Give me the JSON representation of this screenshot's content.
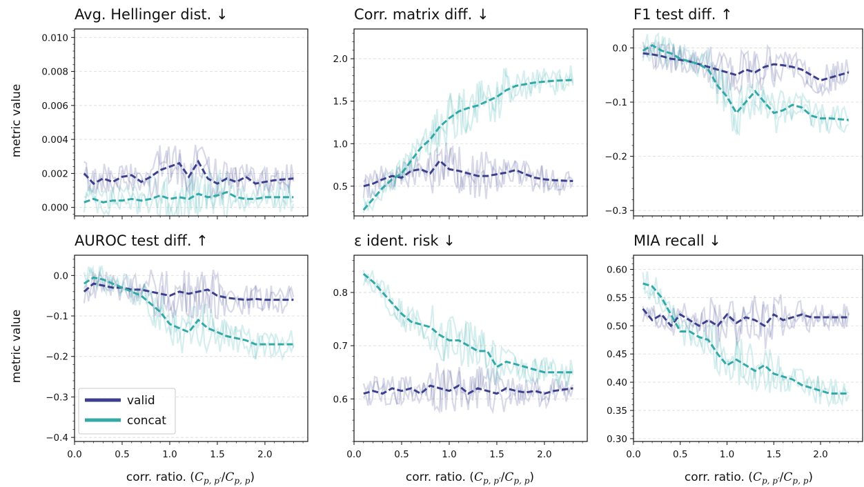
{
  "colors": {
    "valid": "#3b3f8c",
    "concat": "#33a8a8"
  },
  "legend": {
    "labels": [
      "valid",
      "concat"
    ],
    "placement": "lower-left"
  },
  "xlabel": {
    "prefix": "corr. ratio. (",
    "c1": "C",
    "sub1": "p, p′",
    "slash": "/",
    "c2": "C",
    "sub2": "p, p",
    "suffix": ")"
  },
  "ylabel": "metric value",
  "chart_data": [
    {
      "type": "line",
      "title": "Avg. Hellinger dist.  ↓",
      "xlim": [
        0,
        2.45
      ],
      "ylim": [
        -0.0005,
        0.0105
      ],
      "xticks": [
        0.0,
        0.5,
        1.0,
        1.5,
        2.0
      ],
      "xticklabels": [
        "0.0",
        "0.5",
        "1.0",
        "1.5",
        "2.0"
      ],
      "yticks": [
        0.0,
        0.002,
        0.004,
        0.006,
        0.008,
        0.01
      ],
      "yticklabels": [
        "0.000",
        "0.002",
        "0.004",
        "0.006",
        "0.008",
        "0.010"
      ],
      "series": [
        {
          "name": "valid",
          "x": [
            0.1,
            0.2,
            0.3,
            0.4,
            0.5,
            0.6,
            0.7,
            0.8,
            0.9,
            1.0,
            1.1,
            1.2,
            1.3,
            1.4,
            1.5,
            1.6,
            1.7,
            1.8,
            1.9,
            2.0,
            2.1,
            2.3
          ],
          "y": [
            0.002,
            0.0014,
            0.0017,
            0.0015,
            0.0018,
            0.0019,
            0.0015,
            0.0018,
            0.0022,
            0.0024,
            0.0026,
            0.0018,
            0.0027,
            0.0017,
            0.0014,
            0.0017,
            0.0015,
            0.0018,
            0.0014,
            0.0015,
            0.0016,
            0.0017
          ]
        },
        {
          "name": "concat",
          "x": [
            0.1,
            0.2,
            0.3,
            0.4,
            0.5,
            0.6,
            0.7,
            0.8,
            0.9,
            1.0,
            1.1,
            1.2,
            1.3,
            1.4,
            1.5,
            1.6,
            1.7,
            1.8,
            1.9,
            2.0,
            2.1,
            2.3
          ],
          "y": [
            0.0003,
            0.0005,
            0.0003,
            0.0004,
            0.0004,
            0.0005,
            0.0004,
            0.0005,
            0.0007,
            0.0005,
            0.0006,
            0.0005,
            0.0008,
            0.0006,
            0.0007,
            0.0009,
            0.0006,
            0.0005,
            0.0005,
            0.0006,
            0.0006,
            0.0006
          ]
        }
      ]
    },
    {
      "type": "line",
      "title": "Corr. matrix diff.  ↓",
      "xlim": [
        0,
        2.45
      ],
      "ylim": [
        0.15,
        2.35
      ],
      "xticks": [
        0.0,
        0.5,
        1.0,
        1.5,
        2.0
      ],
      "xticklabels": [
        "0.0",
        "0.5",
        "1.0",
        "1.5",
        "2.0"
      ],
      "yticks": [
        0.5,
        1.0,
        1.5,
        2.0
      ],
      "yticklabels": [
        "0.5",
        "1.0",
        "1.5",
        "2.0"
      ],
      "series": [
        {
          "name": "valid",
          "x": [
            0.1,
            0.2,
            0.3,
            0.4,
            0.5,
            0.6,
            0.7,
            0.8,
            0.9,
            1.0,
            1.1,
            1.2,
            1.3,
            1.4,
            1.5,
            1.6,
            1.7,
            1.8,
            1.9,
            2.0,
            2.1,
            2.3
          ],
          "y": [
            0.5,
            0.53,
            0.58,
            0.62,
            0.6,
            0.68,
            0.7,
            0.65,
            0.8,
            0.7,
            0.68,
            0.65,
            0.62,
            0.62,
            0.64,
            0.66,
            0.69,
            0.64,
            0.6,
            0.58,
            0.57,
            0.56
          ]
        },
        {
          "name": "concat",
          "x": [
            0.1,
            0.2,
            0.3,
            0.4,
            0.5,
            0.6,
            0.7,
            0.8,
            0.9,
            1.0,
            1.1,
            1.2,
            1.3,
            1.4,
            1.5,
            1.6,
            1.7,
            1.8,
            1.9,
            2.0,
            2.1,
            2.3
          ],
          "y": [
            0.22,
            0.35,
            0.48,
            0.58,
            0.65,
            0.8,
            0.95,
            1.05,
            1.2,
            1.3,
            1.38,
            1.42,
            1.45,
            1.5,
            1.55,
            1.63,
            1.68,
            1.7,
            1.72,
            1.73,
            1.74,
            1.75
          ]
        }
      ]
    },
    {
      "type": "line",
      "title": "F1 test diff.  ↑",
      "xlim": [
        0,
        2.45
      ],
      "ylim": [
        -0.31,
        0.035
      ],
      "xticks": [
        0.0,
        0.5,
        1.0,
        1.5,
        2.0
      ],
      "xticklabels": [
        "0.0",
        "0.5",
        "1.0",
        "1.5",
        "2.0"
      ],
      "yticks": [
        0.0,
        -0.1,
        -0.2,
        -0.3
      ],
      "yticklabels": [
        "0.0",
        "−0.1",
        "−0.2",
        "−0.3"
      ],
      "series": [
        {
          "name": "valid",
          "x": [
            0.1,
            0.2,
            0.3,
            0.4,
            0.5,
            0.6,
            0.7,
            0.8,
            0.9,
            1.0,
            1.1,
            1.2,
            1.3,
            1.4,
            1.5,
            1.6,
            1.7,
            1.8,
            1.9,
            2.0,
            2.1,
            2.3
          ],
          "y": [
            -0.01,
            -0.012,
            -0.015,
            -0.02,
            -0.022,
            -0.025,
            -0.03,
            -0.035,
            -0.04,
            -0.045,
            -0.05,
            -0.04,
            -0.045,
            -0.035,
            -0.03,
            -0.032,
            -0.035,
            -0.04,
            -0.05,
            -0.06,
            -0.055,
            -0.045
          ]
        },
        {
          "name": "concat",
          "x": [
            0.1,
            0.2,
            0.3,
            0.4,
            0.5,
            0.6,
            0.7,
            0.8,
            0.9,
            1.0,
            1.1,
            1.2,
            1.3,
            1.4,
            1.5,
            1.6,
            1.7,
            1.8,
            1.9,
            2.0,
            2.1,
            2.3
          ],
          "y": [
            -0.005,
            0.005,
            -0.005,
            -0.01,
            -0.02,
            -0.025,
            -0.03,
            -0.04,
            -0.07,
            -0.09,
            -0.12,
            -0.1,
            -0.08,
            -0.1,
            -0.12,
            -0.115,
            -0.105,
            -0.11,
            -0.125,
            -0.13,
            -0.13,
            -0.133
          ]
        }
      ]
    },
    {
      "type": "line",
      "title": "AUROC test diff.  ↑",
      "xlim": [
        0,
        2.45
      ],
      "ylim": [
        -0.41,
        0.05
      ],
      "xticks": [
        0.0,
        0.5,
        1.0,
        1.5,
        2.0
      ],
      "xticklabels": [
        "0.0",
        "0.5",
        "1.0",
        "1.5",
        "2.0"
      ],
      "yticks": [
        0.0,
        -0.1,
        -0.2,
        -0.3,
        -0.4
      ],
      "yticklabels": [
        "0.0",
        "−0.1",
        "−0.2",
        "−0.3",
        "−0.4"
      ],
      "series": [
        {
          "name": "valid",
          "x": [
            0.1,
            0.2,
            0.3,
            0.4,
            0.5,
            0.6,
            0.7,
            0.8,
            0.9,
            1.0,
            1.1,
            1.2,
            1.3,
            1.4,
            1.5,
            1.6,
            1.7,
            1.8,
            1.9,
            2.0,
            2.1,
            2.3
          ],
          "y": [
            -0.04,
            -0.02,
            -0.025,
            -0.03,
            -0.03,
            -0.035,
            -0.035,
            -0.04,
            -0.045,
            -0.05,
            -0.04,
            -0.045,
            -0.04,
            -0.035,
            -0.05,
            -0.055,
            -0.058,
            -0.06,
            -0.058,
            -0.06,
            -0.06,
            -0.06
          ]
        },
        {
          "name": "concat",
          "x": [
            0.1,
            0.2,
            0.3,
            0.4,
            0.5,
            0.6,
            0.7,
            0.8,
            0.9,
            1.0,
            1.1,
            1.2,
            1.3,
            1.4,
            1.5,
            1.6,
            1.7,
            1.8,
            1.9,
            2.0,
            2.1,
            2.3
          ],
          "y": [
            -0.02,
            -0.005,
            -0.01,
            -0.02,
            -0.03,
            -0.04,
            -0.05,
            -0.07,
            -0.09,
            -0.12,
            -0.13,
            -0.14,
            -0.11,
            -0.13,
            -0.14,
            -0.15,
            -0.155,
            -0.16,
            -0.17,
            -0.17,
            -0.17,
            -0.17
          ]
        }
      ]
    },
    {
      "type": "line",
      "title": "ε ident. risk  ↓",
      "xlim": [
        0,
        2.45
      ],
      "ylim": [
        0.52,
        0.87
      ],
      "xticks": [
        0.0,
        0.5,
        1.0,
        1.5,
        2.0
      ],
      "xticklabels": [
        "0.0",
        "0.5",
        "1.0",
        "1.5",
        "2.0"
      ],
      "yticks": [
        0.6,
        0.7,
        0.8
      ],
      "yticklabels": [
        "0.6",
        "0.7",
        "0.8"
      ],
      "series": [
        {
          "name": "valid",
          "x": [
            0.1,
            0.2,
            0.3,
            0.4,
            0.5,
            0.6,
            0.7,
            0.8,
            0.9,
            1.0,
            1.1,
            1.2,
            1.3,
            1.4,
            1.5,
            1.6,
            1.7,
            1.8,
            1.9,
            2.0,
            2.1,
            2.3
          ],
          "y": [
            0.61,
            0.615,
            0.61,
            0.62,
            0.615,
            0.62,
            0.61,
            0.625,
            0.62,
            0.615,
            0.625,
            0.61,
            0.62,
            0.615,
            0.61,
            0.62,
            0.615,
            0.612,
            0.615,
            0.61,
            0.615,
            0.62
          ]
        },
        {
          "name": "concat",
          "x": [
            0.1,
            0.2,
            0.3,
            0.4,
            0.5,
            0.6,
            0.7,
            0.8,
            0.9,
            1.0,
            1.1,
            1.2,
            1.3,
            1.4,
            1.5,
            1.6,
            1.7,
            1.8,
            1.9,
            2.0,
            2.1,
            2.3
          ],
          "y": [
            0.835,
            0.82,
            0.8,
            0.78,
            0.76,
            0.745,
            0.74,
            0.735,
            0.72,
            0.71,
            0.71,
            0.7,
            0.69,
            0.69,
            0.66,
            0.67,
            0.665,
            0.66,
            0.655,
            0.65,
            0.65,
            0.65
          ]
        }
      ]
    },
    {
      "type": "line",
      "title": "MIA recall  ↓",
      "xlim": [
        0,
        2.45
      ],
      "ylim": [
        0.295,
        0.625
      ],
      "xticks": [
        0.0,
        0.5,
        1.0,
        1.5,
        2.0
      ],
      "xticklabels": [
        "0.0",
        "0.5",
        "1.0",
        "1.5",
        "2.0"
      ],
      "yticks": [
        0.3,
        0.35,
        0.4,
        0.45,
        0.5,
        0.55,
        0.6
      ],
      "yticklabels": [
        "0.30",
        "0.35",
        "0.40",
        "0.45",
        "0.50",
        "0.55",
        "0.60"
      ],
      "series": [
        {
          "name": "valid",
          "x": [
            0.1,
            0.2,
            0.3,
            0.4,
            0.5,
            0.6,
            0.7,
            0.8,
            0.9,
            1.0,
            1.1,
            1.2,
            1.3,
            1.4,
            1.5,
            1.6,
            1.7,
            1.8,
            1.9,
            2.0,
            2.1,
            2.3
          ],
          "y": [
            0.53,
            0.51,
            0.52,
            0.5,
            0.52,
            0.51,
            0.5,
            0.51,
            0.5,
            0.52,
            0.505,
            0.515,
            0.51,
            0.5,
            0.52,
            0.51,
            0.515,
            0.52,
            0.515,
            0.515,
            0.515,
            0.515
          ]
        },
        {
          "name": "concat",
          "x": [
            0.1,
            0.2,
            0.3,
            0.4,
            0.5,
            0.6,
            0.7,
            0.8,
            0.9,
            1.0,
            1.1,
            1.2,
            1.3,
            1.4,
            1.5,
            1.6,
            1.7,
            1.8,
            1.9,
            2.0,
            2.1,
            2.3
          ],
          "y": [
            0.575,
            0.57,
            0.55,
            0.52,
            0.49,
            0.49,
            0.48,
            0.475,
            0.45,
            0.43,
            0.44,
            0.43,
            0.42,
            0.43,
            0.415,
            0.41,
            0.405,
            0.395,
            0.39,
            0.385,
            0.38,
            0.38
          ]
        }
      ]
    }
  ]
}
